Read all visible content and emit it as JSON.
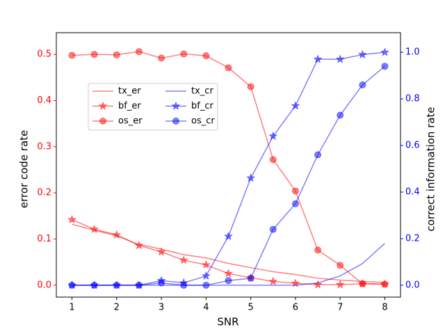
{
  "chart_data": {
    "type": "line",
    "xlabel": "SNR",
    "ylabel": "error code rate",
    "y2label": "correct information rate",
    "x": [
      1,
      1.5,
      2,
      2.5,
      3,
      3.5,
      4,
      4.5,
      5,
      5.5,
      6,
      6.5,
      7,
      7.5,
      8
    ],
    "xlim": [
      0.65,
      8.35
    ],
    "xticks": [
      1,
      2,
      3,
      4,
      5,
      6,
      7,
      8
    ],
    "ylim": [
      -0.026,
      0.547
    ],
    "yticks": [
      {
        "value": 0,
        "label": "0.0"
      },
      0.1,
      0.2,
      0.3,
      0.4,
      0.5
    ],
    "y2lim": [
      -0.051,
      1.084
    ],
    "y2ticks": [
      {
        "value": 0,
        "label": "0.0"
      },
      0.2,
      0.4,
      0.6,
      0.8,
      {
        "value": 1,
        "label": "1.0"
      }
    ],
    "ytick_color": "#ff0000",
    "y2tick_color": "#0000ff",
    "alpha": 0.5,
    "legend": "upper left",
    "legend_columns": 2,
    "series": [
      {
        "name": "tx_er",
        "color": "#ff0000",
        "marker": "none",
        "axis": "y",
        "values": [
          0.132,
          0.119,
          0.107,
          0.088,
          0.078,
          0.066,
          0.059,
          0.047,
          0.038,
          0.029,
          0.023,
          0.015,
          0.011,
          0.008,
          0.006
        ]
      },
      {
        "name": "bf_er",
        "color": "#ff0000",
        "marker": "star",
        "axis": "y",
        "values": [
          0.142,
          0.121,
          0.109,
          0.086,
          0.072,
          0.054,
          0.044,
          0.025,
          0.016,
          0.008,
          0.004,
          0.001,
          0.001,
          0.003,
          0.002
        ]
      },
      {
        "name": "os_er",
        "color": "#ff0000",
        "marker": "circle",
        "axis": "y",
        "values": [
          0.498,
          0.5,
          0.499,
          0.506,
          0.492,
          0.501,
          0.497,
          0.471,
          0.43,
          0.272,
          0.204,
          0.076,
          0.043,
          0.003,
          0.002
        ]
      },
      {
        "name": "tx_cr",
        "color": "#0000ff",
        "marker": "none",
        "axis": "y2",
        "values": [
          0,
          0,
          0,
          0,
          0,
          0,
          0,
          0,
          0,
          0,
          0,
          0.01,
          0.04,
          0.093,
          0.18
        ]
      },
      {
        "name": "bf_cr",
        "color": "#0000ff",
        "marker": "star",
        "axis": "y2",
        "values": [
          0,
          0,
          0,
          0,
          0.02,
          0.01,
          0.04,
          0.21,
          0.46,
          0.64,
          0.77,
          0.97,
          0.97,
          0.99,
          1.0
        ]
      },
      {
        "name": "os_cr",
        "color": "#0000ff",
        "marker": "circle",
        "axis": "y2",
        "values": [
          0,
          0,
          0,
          0,
          0.01,
          0,
          0,
          0.02,
          0.03,
          0.24,
          0.35,
          0.56,
          0.73,
          0.86,
          0.94
        ]
      }
    ]
  }
}
